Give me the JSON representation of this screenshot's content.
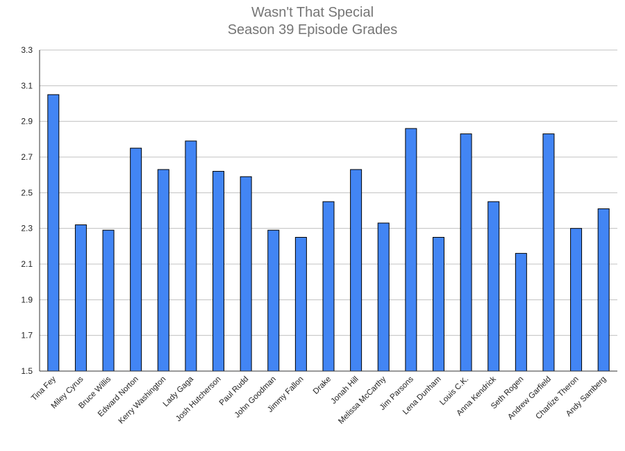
{
  "chart_data": {
    "type": "bar",
    "title": "Wasn't That Special",
    "subtitle": "Season 39 Episode Grades",
    "xlabel": "",
    "ylabel": "",
    "ylim": [
      1.5,
      3.3
    ],
    "yticks": [
      "1.5",
      "1.7",
      "1.9",
      "2.1",
      "2.3",
      "2.5",
      "2.7",
      "2.9",
      "3.1",
      "3.3"
    ],
    "grid": true,
    "categories": [
      "Tina Fey",
      "Miley Cyrus",
      "Bruce Willis",
      "Edward Norton",
      "Kerry Washington",
      "Lady Gaga",
      "Josh Hutcherson",
      "Paul Rudd",
      "John Goodman",
      "Jimmy Fallon",
      "Drake",
      "Jonah Hill",
      "Melissa McCarthy",
      "Jim Parsons",
      "Lena Dunham",
      "Louis C.K.",
      "Anna Kendrick",
      "Seth Rogen",
      "Andrew Garfield",
      "Charlize Theron",
      "Andy Samberg"
    ],
    "values": [
      3.05,
      2.32,
      2.29,
      2.75,
      2.63,
      2.79,
      2.62,
      2.59,
      2.29,
      2.25,
      2.45,
      2.63,
      2.33,
      2.86,
      2.25,
      2.83,
      2.45,
      2.16,
      2.83,
      2.3,
      2.41
    ],
    "colors": {
      "bar": "#4285f4",
      "bar_stroke": "#000000",
      "grid": "#c0c0c0",
      "axis": "#333333",
      "title": "#757575",
      "text": "#222222"
    }
  }
}
